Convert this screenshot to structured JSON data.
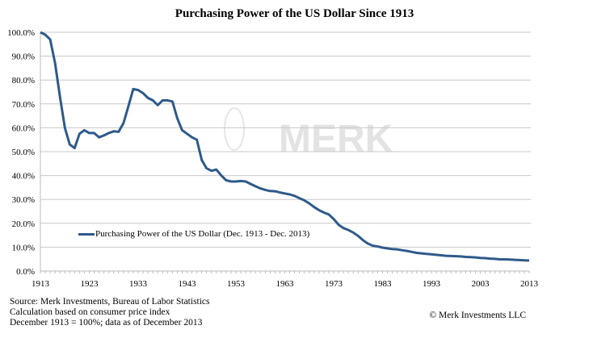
{
  "chart_data": {
    "type": "line",
    "title": "Purchasing Power of the US Dollar Since 1913",
    "xlabel": "",
    "ylabel": "",
    "xlim": [
      1913,
      2013
    ],
    "ylim": [
      0,
      100
    ],
    "grid": true,
    "legend_position": "lower-left",
    "x_ticks": [
      "1913",
      "1923",
      "1933",
      "1943",
      "1953",
      "1963",
      "1973",
      "1983",
      "1993",
      "2003",
      "2013"
    ],
    "y_ticks": [
      "0.0%",
      "10.0%",
      "20.0%",
      "30.0%",
      "40.0%",
      "50.0%",
      "60.0%",
      "70.0%",
      "80.0%",
      "90.0%",
      "100.0%"
    ],
    "series": [
      {
        "name": "Purchasing Power of the US Dollar (Dec. 1913 - Dec. 2013)",
        "color": "#2e5a8a",
        "x_start": 1913,
        "values": [
          100,
          99,
          97,
          87,
          73,
          60,
          53,
          51.5,
          57.5,
          59,
          57.8,
          57.8,
          56,
          56.8,
          57.8,
          58.5,
          58.3,
          62,
          69,
          76.2,
          75.8,
          74.5,
          72.5,
          71.5,
          69.5,
          71.5,
          71.5,
          71,
          64,
          59,
          57.5,
          56,
          55,
          46.5,
          43,
          42,
          42.5,
          40,
          38,
          37.5,
          37.5,
          37.7,
          37.5,
          36.5,
          35.5,
          34.6,
          34,
          33.5,
          33.4,
          32.9,
          32.5,
          32.1,
          31.5,
          30.5,
          29.6,
          28.3,
          26.8,
          25.5,
          24.5,
          23.7,
          21.8,
          19.4,
          18,
          17.2,
          16.1,
          14.7,
          12.9,
          11.5,
          10.6,
          10.3,
          9.8,
          9.5,
          9.2,
          9.1,
          8.7,
          8.4,
          8.0,
          7.6,
          7.4,
          7.2,
          7.0,
          6.8,
          6.6,
          6.4,
          6.3,
          6.2,
          6.1,
          5.9,
          5.8,
          5.7,
          5.5,
          5.4,
          5.2,
          5.1,
          4.9,
          4.9,
          4.8,
          4.7,
          4.6,
          4.5,
          4.4
        ]
      }
    ],
    "watermark": "MERK"
  },
  "footer": {
    "source_lines": [
      "Source: Merk Investments, Bureau of Labor Statistics",
      "Calculation based on consumer price index",
      "December 1913 = 100%; data as of December 2013"
    ],
    "copyright": "© Merk Investments LLC"
  }
}
